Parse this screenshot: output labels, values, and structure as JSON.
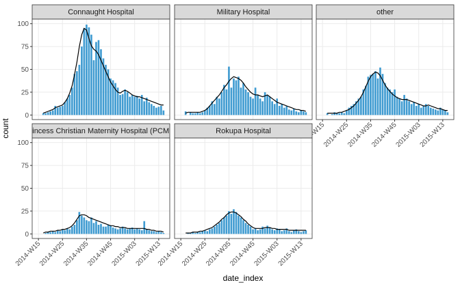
{
  "chart_data": {
    "type": "bar",
    "xlabel": "date_index",
    "ylabel": "count",
    "ylim": [
      -5,
      105
    ],
    "yticks": [
      0,
      25,
      50,
      75,
      100
    ],
    "grid": true,
    "xticks": [
      "2014-W15",
      "2014-W25",
      "2014-W35",
      "2014-W45",
      "2015-W03",
      "2015-W13"
    ],
    "bar_color": "#3f9bd1",
    "line_color": "#000000",
    "x": [
      "2014-W17",
      "2014-W18",
      "2014-W19",
      "2014-W20",
      "2014-W21",
      "2014-W22",
      "2014-W23",
      "2014-W24",
      "2014-W25",
      "2014-W26",
      "2014-W27",
      "2014-W28",
      "2014-W29",
      "2014-W30",
      "2014-W31",
      "2014-W32",
      "2014-W33",
      "2014-W34",
      "2014-W35",
      "2014-W36",
      "2014-W37",
      "2014-W38",
      "2014-W39",
      "2014-W40",
      "2014-W41",
      "2014-W42",
      "2014-W43",
      "2014-W44",
      "2014-W45",
      "2014-W46",
      "2014-W47",
      "2014-W48",
      "2014-W49",
      "2014-W50",
      "2014-W51",
      "2014-W52",
      "2015-W01",
      "2015-W02",
      "2015-W03",
      "2015-W04",
      "2015-W05",
      "2015-W06",
      "2015-W07",
      "2015-W08",
      "2015-W09",
      "2015-W10",
      "2015-W11",
      "2015-W12",
      "2015-W13",
      "2015-W14",
      "2015-W15"
    ],
    "panels": [
      {
        "title": "Connaught Hospital",
        "values": [
          2,
          2,
          3,
          4,
          5,
          10,
          8,
          9,
          10,
          14,
          18,
          22,
          30,
          45,
          48,
          55,
          75,
          95,
          99,
          96,
          88,
          60,
          80,
          82,
          72,
          62,
          55,
          50,
          40,
          38,
          35,
          30,
          22,
          23,
          28,
          25,
          20,
          22,
          20,
          21,
          18,
          22,
          15,
          19,
          14,
          12,
          10,
          8,
          9,
          10,
          5
        ],
        "trend": [
          2,
          3,
          4,
          5,
          6,
          8,
          9,
          10,
          11,
          14,
          18,
          24,
          32,
          44,
          58,
          75,
          88,
          95,
          93,
          84,
          76,
          72,
          70,
          66,
          60,
          54,
          48,
          42,
          36,
          32,
          28,
          25,
          24,
          26,
          27,
          26,
          24,
          22,
          21,
          20,
          20,
          19,
          18,
          17,
          16,
          15,
          14,
          13,
          12,
          11,
          11
        ]
      },
      {
        "title": "Military Hospital",
        "values": [
          4,
          0,
          3,
          2,
          2,
          3,
          2,
          3,
          5,
          8,
          10,
          15,
          12,
          20,
          18,
          25,
          33,
          28,
          53,
          30,
          40,
          38,
          42,
          30,
          35,
          28,
          25,
          20,
          18,
          30,
          22,
          18,
          15,
          25,
          22,
          20,
          15,
          12,
          18,
          10,
          12,
          8,
          10,
          6,
          5,
          7,
          4,
          3,
          5,
          4,
          3
        ],
        "trend": [
          2,
          3,
          3,
          3,
          3,
          3,
          3,
          4,
          5,
          7,
          10,
          13,
          16,
          19,
          22,
          26,
          30,
          33,
          37,
          40,
          42,
          41,
          40,
          38,
          35,
          31,
          28,
          25,
          23,
          22,
          22,
          21,
          20,
          21,
          22,
          20,
          18,
          16,
          14,
          13,
          12,
          11,
          10,
          9,
          8,
          7,
          6,
          6,
          5,
          5,
          4
        ]
      },
      {
        "title": "other",
        "values": [
          2,
          0,
          1,
          3,
          2,
          2,
          3,
          2,
          5,
          8,
          10,
          12,
          15,
          18,
          20,
          28,
          32,
          42,
          44,
          45,
          48,
          40,
          52,
          45,
          35,
          30,
          28,
          25,
          28,
          20,
          18,
          15,
          22,
          18,
          15,
          12,
          14,
          10,
          12,
          8,
          10,
          12,
          10,
          8,
          7,
          6,
          5,
          8,
          6,
          5,
          3
        ],
        "trend": [
          2,
          2,
          2,
          2,
          2,
          3,
          3,
          4,
          5,
          6,
          8,
          10,
          13,
          16,
          20,
          25,
          31,
          37,
          42,
          45,
          47,
          46,
          43,
          38,
          33,
          29,
          26,
          23,
          21,
          19,
          18,
          17,
          17,
          17,
          16,
          15,
          14,
          13,
          12,
          11,
          10,
          10,
          11,
          10,
          9,
          8,
          7,
          7,
          6,
          5,
          5
        ]
      },
      {
        "title": "Princess Christian Maternity Hospital (PCMH)",
        "values": [
          0,
          1,
          2,
          2,
          3,
          2,
          4,
          3,
          5,
          4,
          6,
          5,
          8,
          10,
          15,
          24,
          20,
          18,
          15,
          14,
          18,
          12,
          14,
          10,
          11,
          8,
          8,
          10,
          9,
          7,
          6,
          5,
          6,
          8,
          6,
          5,
          6,
          7,
          5,
          6,
          5,
          4,
          14,
          5,
          4,
          3,
          3,
          2,
          3,
          2,
          1
        ],
        "trend": [
          1,
          2,
          2,
          3,
          3,
          3,
          4,
          4,
          5,
          5,
          6,
          7,
          9,
          12,
          16,
          20,
          21,
          21,
          20,
          18,
          17,
          16,
          15,
          14,
          13,
          12,
          11,
          10,
          9,
          9,
          8,
          8,
          7,
          7,
          7,
          6,
          6,
          6,
          6,
          6,
          6,
          6,
          6,
          5,
          5,
          4,
          4,
          3,
          3,
          3,
          2
        ]
      },
      {
        "title": "Rokupa Hospital",
        "values": [
          0,
          1,
          1,
          2,
          1,
          2,
          2,
          3,
          4,
          3,
          5,
          6,
          8,
          10,
          12,
          15,
          18,
          20,
          25,
          22,
          27,
          24,
          20,
          18,
          15,
          12,
          10,
          8,
          5,
          6,
          4,
          5,
          8,
          6,
          9,
          7,
          5,
          4,
          6,
          5,
          3,
          4,
          6,
          3,
          2,
          4,
          5,
          3,
          2,
          3,
          4
        ],
        "trend": [
          1,
          1,
          1,
          2,
          2,
          2,
          3,
          3,
          4,
          5,
          6,
          7,
          9,
          11,
          13,
          16,
          18,
          21,
          23,
          24,
          24,
          23,
          21,
          19,
          16,
          14,
          11,
          9,
          7,
          6,
          6,
          6,
          6,
          7,
          7,
          7,
          6,
          6,
          5,
          5,
          5,
          5,
          5,
          4,
          4,
          4,
          4,
          4,
          4,
          4,
          4
        ]
      }
    ]
  }
}
